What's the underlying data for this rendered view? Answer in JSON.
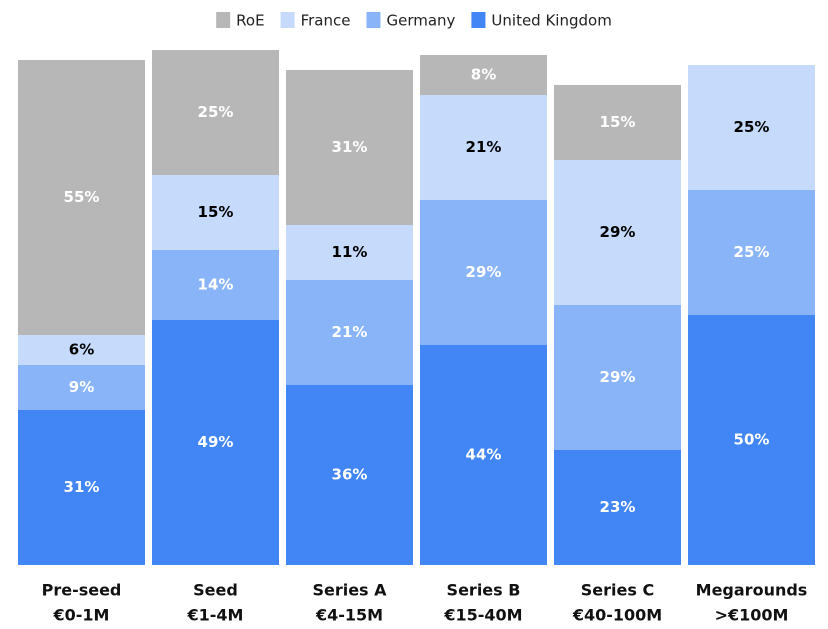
{
  "chart_data": {
    "type": "stacked_bar",
    "categories": [
      [
        "Pre-seed",
        "€0-1M"
      ],
      [
        "Seed",
        "€1-4M"
      ],
      [
        "Series A",
        "€4-15M"
      ],
      [
        "Series B",
        "€15-40M"
      ],
      [
        "Series C",
        "€40-100M"
      ],
      [
        "Megarounds",
        ">€100M"
      ]
    ],
    "series": [
      {
        "name": "United Kingdom",
        "color": "#4285f4",
        "label_color": "#ffffff",
        "values": [
          31,
          49,
          36,
          44,
          23,
          50
        ]
      },
      {
        "name": "Germany",
        "color": "#8ab4f8",
        "label_color": "#ffffff",
        "values": [
          9,
          14,
          21,
          29,
          29,
          25
        ]
      },
      {
        "name": "France",
        "color": "#c6dafc",
        "label_color": "#000000",
        "values": [
          6,
          15,
          11,
          21,
          29,
          25
        ]
      },
      {
        "name": "RoE",
        "color": "#b7b7b7",
        "label_color": "#ffffff",
        "values": [
          55,
          25,
          31,
          8,
          15,
          null
        ]
      }
    ],
    "value_labels": [
      [
        "31%",
        "49%",
        "36%",
        "44%",
        "23%",
        "50%"
      ],
      [
        "9%",
        "14%",
        "21%",
        "29%",
        "29%",
        "25%"
      ],
      [
        "6%",
        "15%",
        "11%",
        "21%",
        "29%",
        "25%"
      ],
      [
        "55%",
        "25%",
        "31%",
        "8%",
        "15%",
        null
      ]
    ],
    "ylim": [
      0,
      100
    ],
    "legend": "top"
  }
}
